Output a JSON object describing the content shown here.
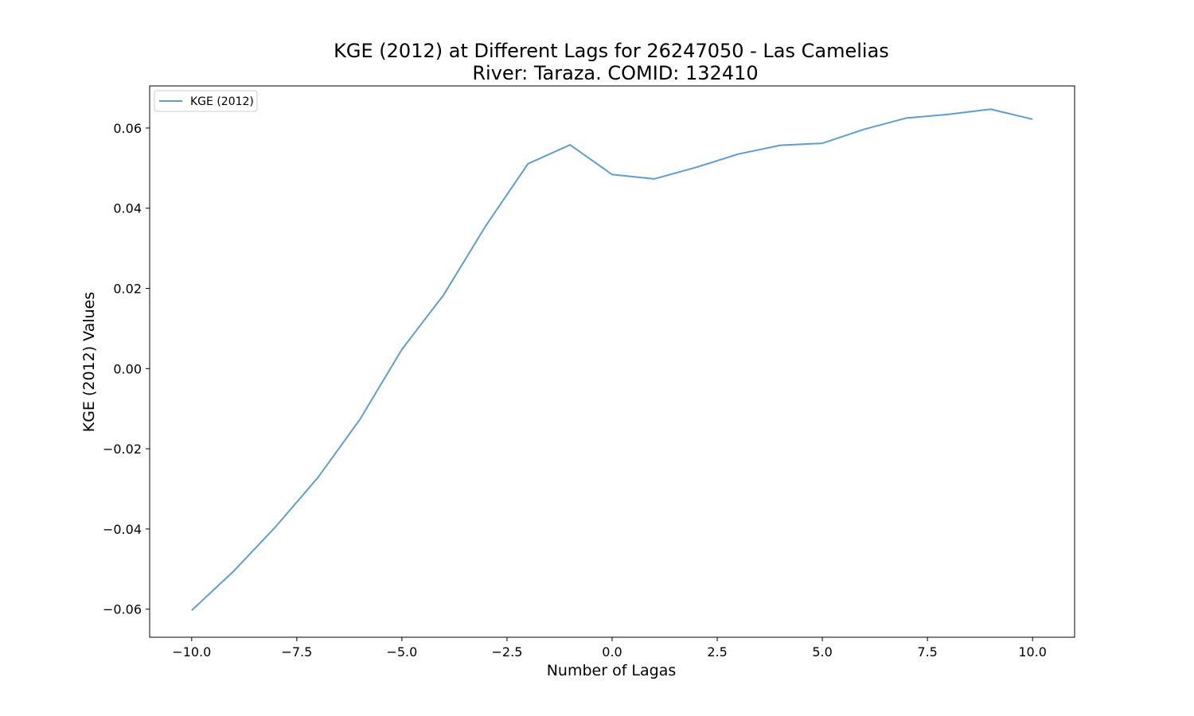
{
  "chart_data": {
    "type": "line",
    "title": "KGE (2012) at Different Lags for 26247050 - Las Camelias",
    "subtitle": "River: Taraza. COMID: 132410",
    "xlabel": "Number of Lagas",
    "ylabel": "KGE (2012) Values",
    "xlim": [
      -11,
      11
    ],
    "ylim": [
      -0.067,
      0.0705
    ],
    "x_ticks": [
      -10.0,
      -7.5,
      -5.0,
      -2.5,
      0.0,
      2.5,
      5.0,
      7.5,
      10.0
    ],
    "x_tick_labels": [
      "−10.0",
      "−7.5",
      "−5.0",
      "−2.5",
      "0.0",
      "2.5",
      "5.0",
      "7.5",
      "10.0"
    ],
    "y_ticks": [
      -0.06,
      -0.04,
      -0.02,
      0.0,
      0.02,
      0.04,
      0.06
    ],
    "y_tick_labels": [
      "−0.06",
      "−0.04",
      "−0.02",
      "0.00",
      "0.02",
      "0.04",
      "0.06"
    ],
    "grid": false,
    "legend_position": "top-left",
    "series": [
      {
        "name": "KGE (2012)",
        "color": "#5f9ecb",
        "x": [
          -10,
          -9,
          -8,
          -7,
          -6,
          -5,
          -4,
          -3,
          -2,
          -1,
          0,
          1,
          2,
          3,
          4,
          5,
          6,
          7,
          8,
          9,
          10
        ],
        "y": [
          -0.0603,
          -0.0505,
          -0.0394,
          -0.0272,
          -0.0127,
          0.0048,
          0.0185,
          0.0357,
          0.0511,
          0.0558,
          0.0484,
          0.0473,
          0.0502,
          0.0535,
          0.0557,
          0.0562,
          0.0597,
          0.0625,
          0.0634,
          0.0647,
          0.0622
        ]
      }
    ]
  }
}
